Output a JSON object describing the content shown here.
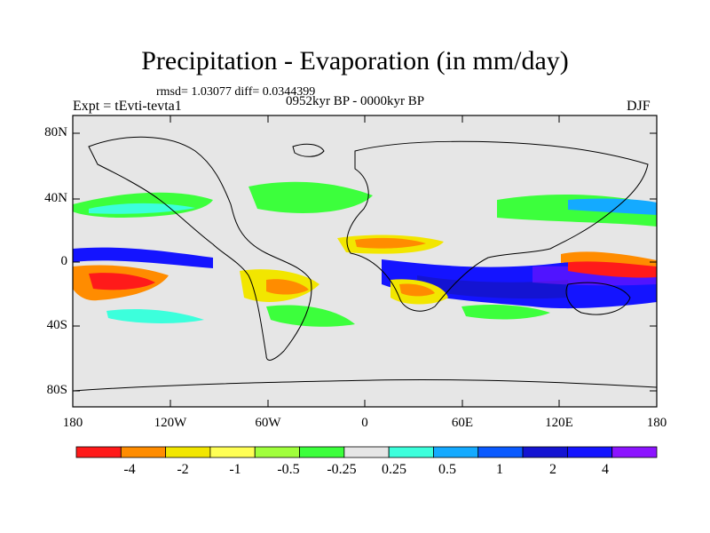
{
  "title": "Precipitation - Evaporation (in mm/day)",
  "stats": "rmsd= 1.03077 diff= 0.0344399",
  "experiment": "Expt = tEvti-tevta1",
  "period": "0952kyr BP - 0000kyr BP",
  "season": "DJF",
  "lat_labels": [
    "80N",
    "40N",
    "0",
    "40S",
    "80S"
  ],
  "lon_labels": [
    "180",
    "120W",
    "60W",
    "0",
    "60E",
    "120E",
    "180"
  ],
  "colorbar": {
    "colors": [
      "#ff1a1a",
      "#ff8c00",
      "#f2e600",
      "#ffff55",
      "#a0ff3c",
      "#3cff3c",
      "#e6e6e6",
      "#3cffdc",
      "#14aaff",
      "#0a5aff",
      "#1414d2",
      "#1414ff",
      "#8c14ff"
    ],
    "labels": [
      "-4",
      "-2",
      "-1",
      "-0.5",
      "-0.25",
      "0.25",
      "0.5",
      "1",
      "2",
      "4"
    ]
  }
}
